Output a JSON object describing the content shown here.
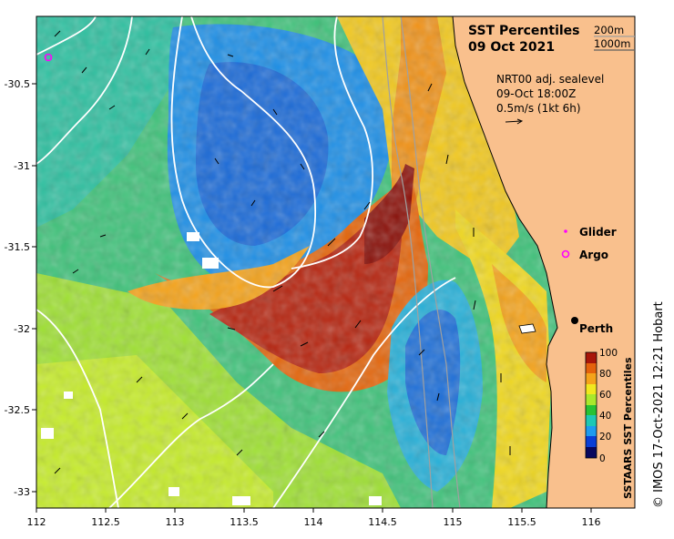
{
  "title": {
    "line1": "SST Percentiles",
    "line2": "09 Oct 2021"
  },
  "isobath_legend": [
    "200m",
    "1000m"
  ],
  "current_info": {
    "line1": "NRT00 adj. sealevel",
    "line2": "09-Oct 18:00Z",
    "line3": "0.5m/s (1kt 6h)"
  },
  "legend_markers": {
    "glider": "Glider",
    "argo": "Argo"
  },
  "city": "Perth",
  "colorbar": {
    "label": "SSTAARS SST Percentiles",
    "ticks": [
      "100",
      "80",
      "60",
      "40",
      "20",
      "0"
    ],
    "colors": [
      "#08085e",
      "#0a3fd6",
      "#1e9bef",
      "#1ec8b4",
      "#27c234",
      "#a9e82c",
      "#f1e81e",
      "#f5a31a",
      "#e4620c",
      "#a8160a"
    ]
  },
  "x_axis": {
    "ticks": [
      "112",
      "112.5",
      "113",
      "113.5",
      "114",
      "114.5",
      "115",
      "115.5",
      "116"
    ]
  },
  "y_axis": {
    "ticks": [
      "-30.5",
      "-31",
      "-31.5",
      "-32",
      "-32.5",
      "-33"
    ]
  },
  "credit": "© IMOS 17-Oct-2021 12:21 Hobart",
  "colors": {
    "land": "#f9c08d",
    "isobath_200": "#a0a0a0",
    "contour": "#ffffff",
    "glider": "#ff00ff",
    "argo": "#ff00ff"
  }
}
